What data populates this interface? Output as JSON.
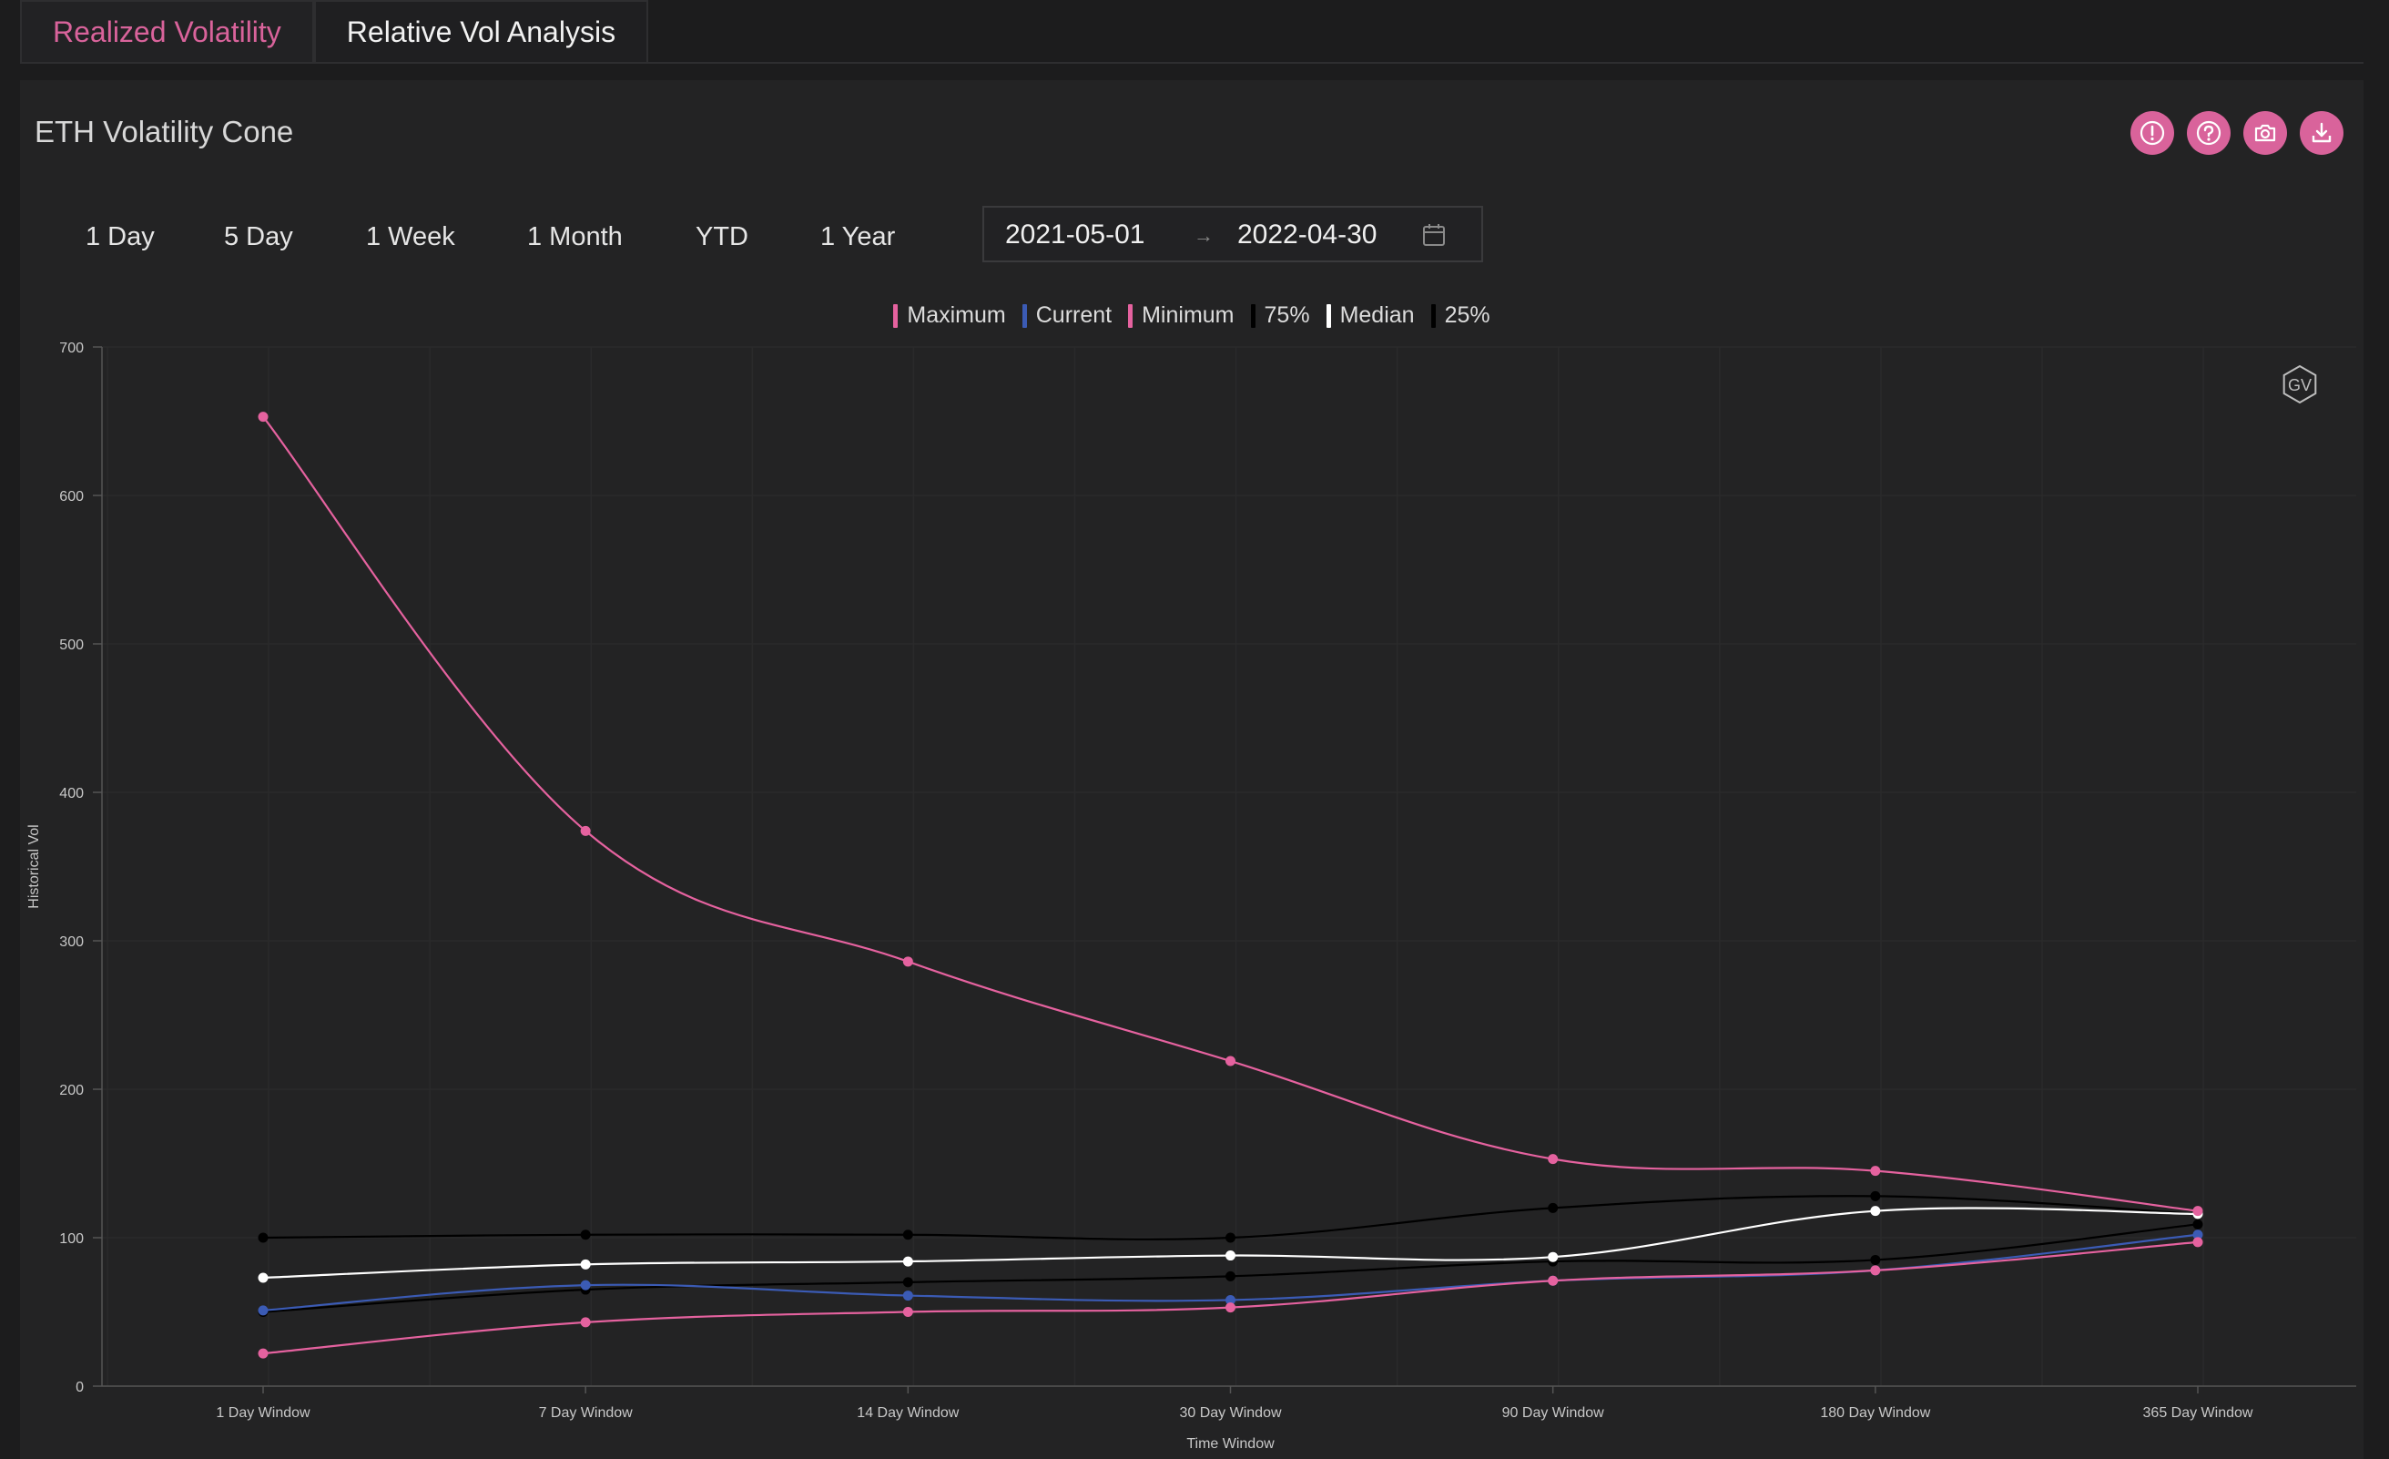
{
  "tabs": [
    {
      "label": "Realized Volatility",
      "active": true
    },
    {
      "label": "Relative Vol Analysis",
      "active": false
    }
  ],
  "panel": {
    "title": "ETH Volatility Cone",
    "icons": [
      "alert-icon",
      "help-icon",
      "camera-icon",
      "download-icon"
    ],
    "range_buttons": [
      "1 Day",
      "5 Day",
      "1 Week",
      "1 Month",
      "YTD",
      "1 Year"
    ],
    "date_range": {
      "start": "2021-05-01",
      "separator": "→",
      "end": "2022-04-30"
    },
    "watermark": "GV"
  },
  "colors": {
    "accent": "#d9639b",
    "maximum": "#e5629f",
    "current": "#3b5bb5",
    "minimum": "#e5629f",
    "p75": "#000000",
    "median": "#ffffff",
    "p25": "#000000"
  },
  "chart_data": {
    "type": "line",
    "title": "",
    "xlabel": "Time Window",
    "ylabel": "Historical Vol",
    "ylim": [
      0,
      700
    ],
    "yticks": [
      0,
      100,
      200,
      300,
      400,
      500,
      600,
      700
    ],
    "categories": [
      "1 Day Window",
      "7 Day Window",
      "14 Day Window",
      "30 Day Window",
      "90 Day Window",
      "180 Day Window",
      "365 Day Window"
    ],
    "legend_position": "top-center",
    "grid": true,
    "series": [
      {
        "name": "Maximum",
        "key": "maximum",
        "values": [
          653,
          374,
          286,
          219,
          153,
          145,
          118
        ]
      },
      {
        "name": "Current",
        "key": "current",
        "values": [
          51,
          68,
          61,
          58,
          71,
          78,
          102
        ]
      },
      {
        "name": "Minimum",
        "key": "minimum",
        "values": [
          22,
          43,
          50,
          53,
          71,
          78,
          97
        ]
      },
      {
        "name": "75%",
        "key": "p75",
        "values": [
          100,
          102,
          102,
          100,
          120,
          128,
          116
        ]
      },
      {
        "name": "Median",
        "key": "median",
        "values": [
          73,
          82,
          84,
          88,
          87,
          118,
          116
        ]
      },
      {
        "name": "25%",
        "key": "p25",
        "values": [
          50,
          65,
          70,
          74,
          84,
          85,
          109
        ]
      }
    ]
  }
}
